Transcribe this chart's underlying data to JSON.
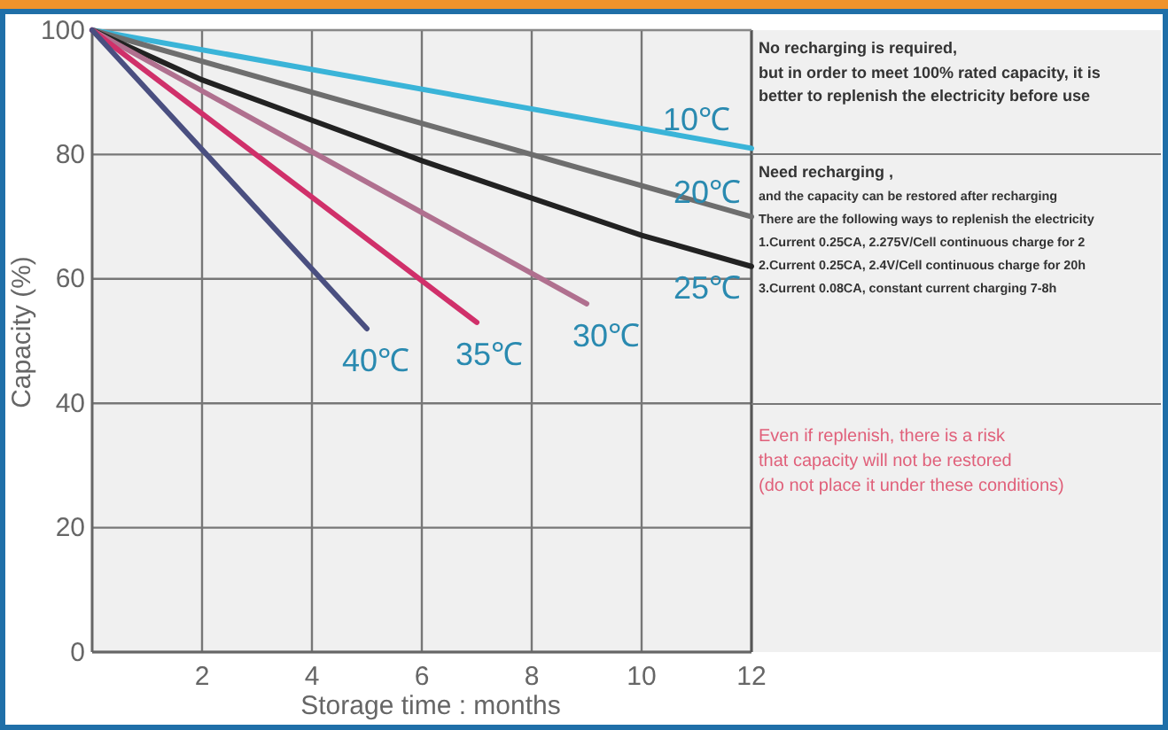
{
  "chart_data": {
    "type": "line",
    "xlabel": "Storage time : months",
    "ylabel": "Capacity (%)",
    "xlim": [
      0,
      12
    ],
    "xticks": [
      2,
      4,
      6,
      8,
      10,
      12
    ],
    "ylim": [
      0,
      100
    ],
    "yticks": [
      0,
      20,
      40,
      60,
      80,
      100
    ],
    "grid": true,
    "legend": false,
    "marker": "none",
    "line_style": "solid",
    "series": [
      {
        "name": "10℃",
        "color": "#3ab4d8",
        "x": [
          0,
          12
        ],
        "values": [
          100,
          81
        ]
      },
      {
        "name": "20℃",
        "color": "#6e6e6e",
        "x": [
          0,
          12
        ],
        "values": [
          100,
          70
        ]
      },
      {
        "name": "25℃",
        "color": "#222222",
        "x": [
          0,
          2,
          4,
          6,
          8,
          10,
          12
        ],
        "values": [
          100,
          92,
          85.5,
          79,
          73,
          67,
          62
        ]
      },
      {
        "name": "30℃",
        "color": "#b0708f",
        "x": [
          0,
          9
        ],
        "values": [
          100,
          56
        ]
      },
      {
        "name": "35℃",
        "color": "#d0306a",
        "x": [
          0,
          7
        ],
        "values": [
          100,
          53
        ]
      },
      {
        "name": "40℃",
        "color": "#4a4f80",
        "x": [
          0,
          5
        ],
        "values": [
          100,
          52
        ]
      }
    ],
    "annotations": [
      "No recharging is required,",
      "but in order to meet 100% rated capacity, it is",
      "better to replenish the electricity before use",
      "Need recharging ,",
      "and the capacity can be restored after recharging",
      "There are the following ways to replenish the electricity",
      "1.Current 0.25CA, 2.275V/Cell continuous charge for 2",
      "2.Current 0.25CA, 2.4V/Cell continuous charge for 20h",
      "3.Current 0.08CA, constant current charging 7-8h",
      "Even if replenish, there is a risk",
      "that capacity will not be restored",
      "(do not place it under these conditions)"
    ]
  }
}
